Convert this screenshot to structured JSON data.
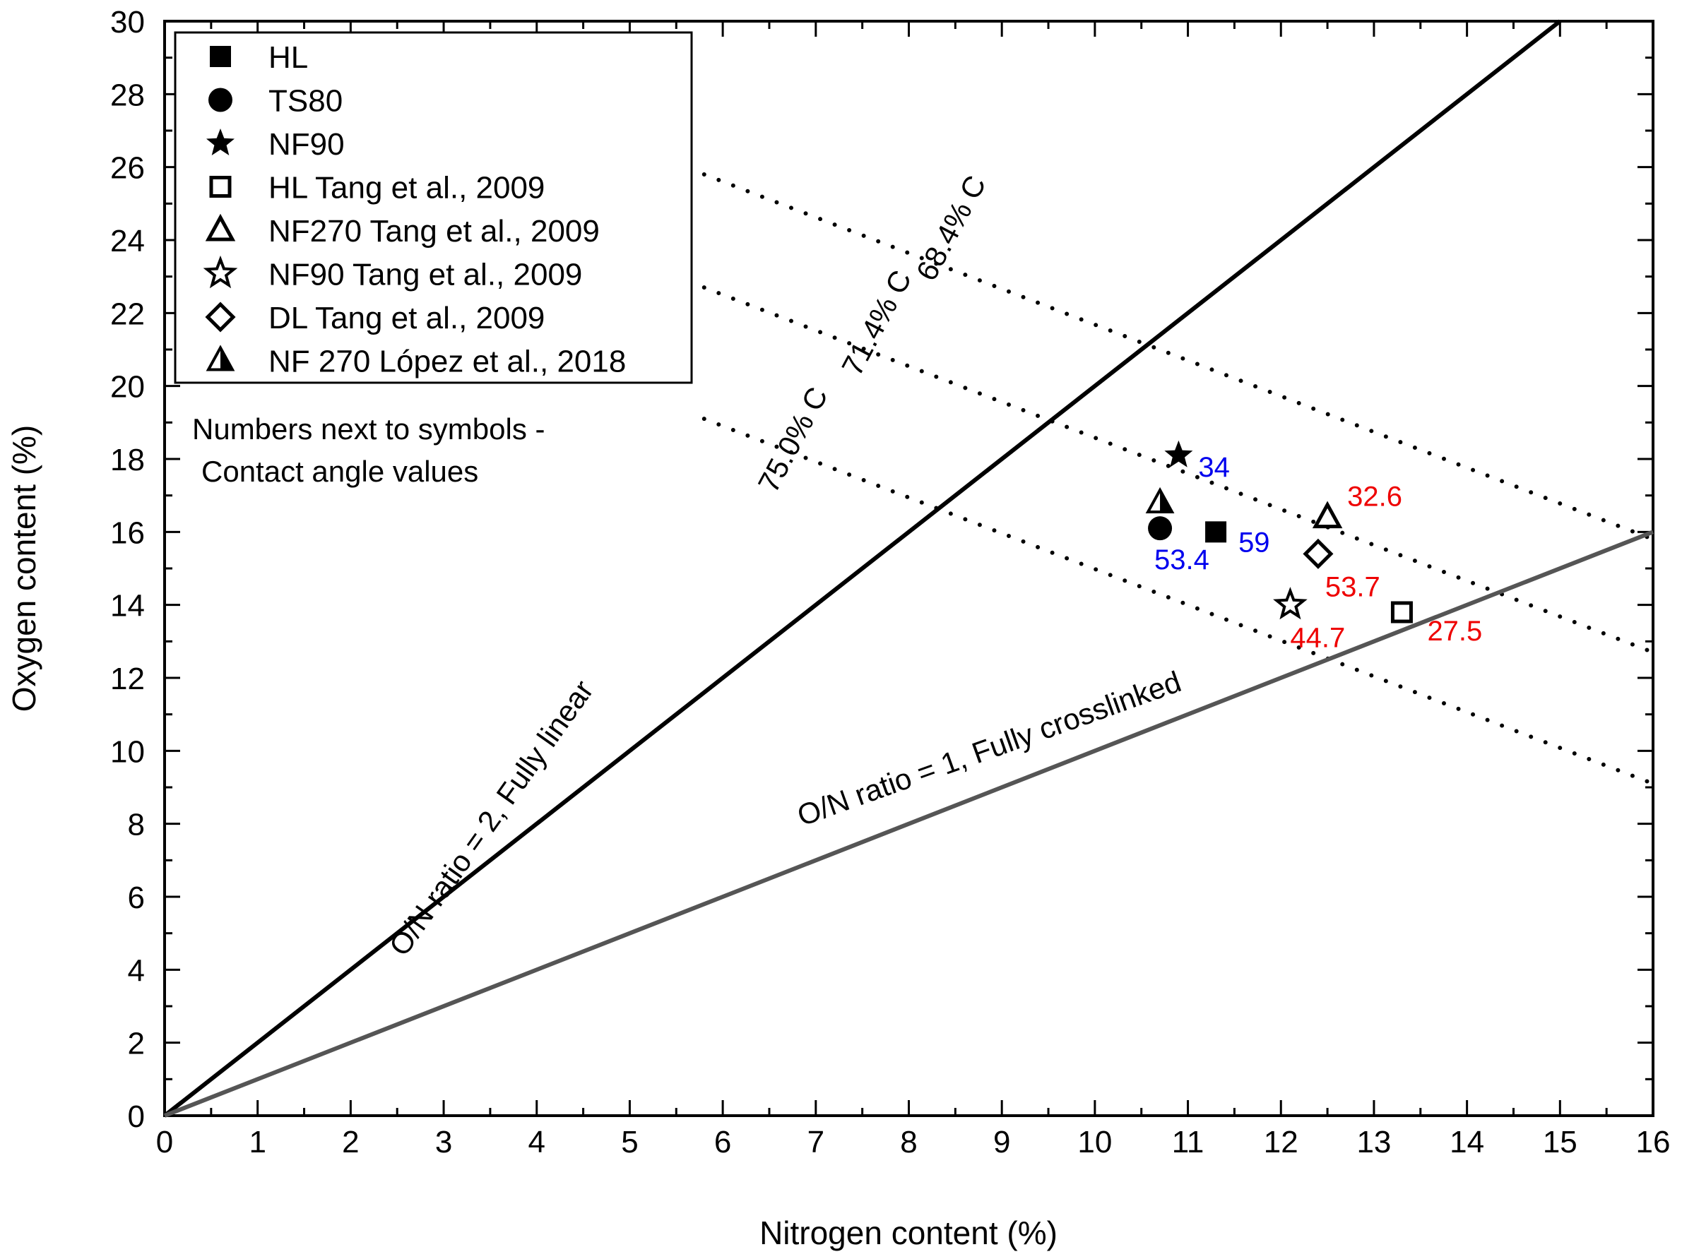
{
  "chart_data": {
    "type": "scatter",
    "xlabel": "Nitrogen content (%)",
    "ylabel": "Oxygen content (%)",
    "xlim": [
      0,
      16
    ],
    "ylim": [
      0,
      30
    ],
    "x_ticks": [
      "0",
      "1",
      "2",
      "3",
      "4",
      "5",
      "6",
      "7",
      "8",
      "9",
      "10",
      "11",
      "12",
      "13",
      "14",
      "15",
      "16"
    ],
    "y_ticks": [
      "0",
      "2",
      "4",
      "6",
      "8",
      "10",
      "12",
      "14",
      "16",
      "18",
      "20",
      "22",
      "24",
      "26",
      "28",
      "30"
    ],
    "grid": false,
    "legend_position": "top-left",
    "legend": [
      {
        "label": "HL",
        "marker": "filled-square"
      },
      {
        "label": "TS80",
        "marker": "filled-circle"
      },
      {
        "label": "NF90",
        "marker": "filled-star"
      },
      {
        "label": "HL Tang et al., 2009",
        "marker": "open-square"
      },
      {
        "label": "NF270 Tang et al., 2009",
        "marker": "open-triangle"
      },
      {
        "label": "NF90 Tang et al., 2009",
        "marker": "open-star"
      },
      {
        "label": "DL Tang et al., 2009",
        "marker": "open-diamond"
      },
      {
        "label": "NF 270  López et al., 2018",
        "marker": "half-triangle"
      }
    ],
    "note": [
      "Numbers next to symbols -",
      "Contact angle values"
    ],
    "series": [
      {
        "name": "HL",
        "marker": "filled-square",
        "x": 11.3,
        "y": 16.0,
        "label": "59",
        "label_color": "#0000ee"
      },
      {
        "name": "TS80",
        "marker": "filled-circle",
        "x": 10.7,
        "y": 16.1,
        "label": "53.4",
        "label_color": "#0000ee"
      },
      {
        "name": "NF90",
        "marker": "filled-star",
        "x": 10.9,
        "y": 18.1,
        "label": "34",
        "label_color": "#0000ee"
      },
      {
        "name": "HL Tang et al., 2009",
        "marker": "open-square",
        "x": 13.3,
        "y": 13.8,
        "label": "27.5",
        "label_color": "#ee0000"
      },
      {
        "name": "NF270 Tang et al., 2009",
        "marker": "open-triangle",
        "x": 12.5,
        "y": 16.4,
        "label": "32.6",
        "label_color": "#ee0000"
      },
      {
        "name": "NF90 Tang et al., 2009",
        "marker": "open-star",
        "x": 12.1,
        "y": 14.0,
        "label": "44.7",
        "label_color": "#ee0000"
      },
      {
        "name": "DL Tang et al., 2009",
        "marker": "open-diamond",
        "x": 12.4,
        "y": 15.4,
        "label": "53.7",
        "label_color": "#ee0000"
      },
      {
        "name": "NF 270  López et al., 2018",
        "marker": "half-triangle",
        "x": 10.7,
        "y": 16.8,
        "label": "",
        "label_color": "#000000"
      }
    ],
    "reference_lines": [
      {
        "label": "O/N ratio = 2, Fully linear",
        "slope": 2,
        "color": "#000000"
      },
      {
        "label": "O/N ratio = 1, Fully crosslinked",
        "slope": 1,
        "color": "#555555"
      }
    ],
    "carbon_lines": [
      {
        "label": "68.4% C",
        "x": [
          5.8,
          16.0
        ],
        "y": [
          25.8,
          15.8
        ]
      },
      {
        "label": "71.4% C",
        "x": [
          5.8,
          16.0
        ],
        "y": [
          22.7,
          12.7
        ]
      },
      {
        "label": "75.0% C",
        "x": [
          5.8,
          16.0
        ],
        "y": [
          19.1,
          9.1
        ]
      }
    ]
  }
}
